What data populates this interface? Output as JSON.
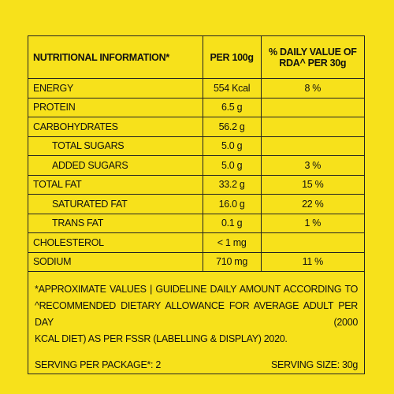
{
  "table": {
    "header": [
      "NUTRITIONAL INFORMATION*",
      "PER 100g",
      "% DAILY VALUE OF RDA^ PER 30g"
    ],
    "rows": [
      {
        "name": "ENERGY",
        "per100g": "554 Kcal",
        "rda": "8 %"
      },
      {
        "name": "PROTEIN",
        "per100g": "6.5 g"
      },
      {
        "name": "CARBOHYDRATES",
        "per100g": "56.2 g"
      },
      {
        "name": "TOTAL SUGARS",
        "per100g": "5.0 g"
      },
      {
        "name": "ADDED SUGARS",
        "per100g": "5.0 g",
        "rda": "3 %"
      },
      {
        "name": "TOTAL FAT",
        "per100g": "33.2 g",
        "rda": "15 %"
      },
      {
        "name": "SATURATED FAT",
        "per100g": "16.0 g",
        "rda": "22 %"
      },
      {
        "name": "TRANS FAT",
        "per100g": "0.1 g",
        "rda": "1 %"
      },
      {
        "name": "CHOLESTEROL",
        "per100g": "< 1 mg"
      },
      {
        "name": "SODIUM",
        "per100g": "710 mg",
        "rda": "11 %"
      }
    ]
  },
  "footnote": [
    "*APPROXIMATE VALUES | GUIDELINE DAILY AMOUNT ACCORDING TO",
    "^RECOMMENDED DIETARY ALLOWANCE FOR AVERAGE ADULT PER DAY (2000",
    "KCAL DIET) AS PER FSSR (LABELLING & DISPLAY) 2020."
  ],
  "serving_per_package": "SERVING PER PACKAGE*: 2",
  "serving_size": "SERVING SIZE: 30g"
}
